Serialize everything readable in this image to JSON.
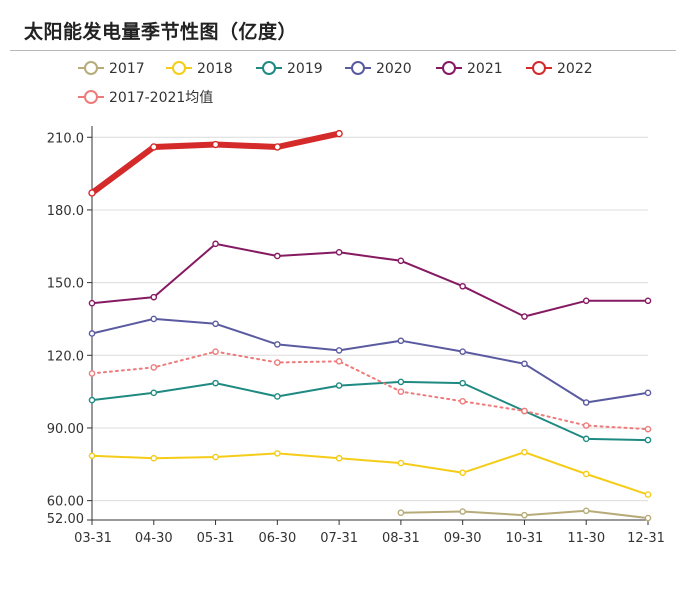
{
  "header": {
    "title": "太阳能发电量季节性图（亿度）"
  },
  "chart_data": {
    "type": "line",
    "title": "太阳能发电量季节性图（亿度）",
    "xlabel": "",
    "ylabel": "",
    "categories": [
      "03-31",
      "04-30",
      "05-31",
      "06-30",
      "07-31",
      "08-31",
      "09-30",
      "10-31",
      "11-30",
      "12-31"
    ],
    "ylim": [
      52,
      213
    ],
    "yticks": [
      {
        "value": 52,
        "label": "52.00"
      },
      {
        "value": 60,
        "label": "60.00"
      },
      {
        "value": 90,
        "label": "90.00"
      },
      {
        "value": 120,
        "label": "120.0"
      },
      {
        "value": 150,
        "label": "150.0"
      },
      {
        "value": 180,
        "label": "180.0"
      },
      {
        "value": 210,
        "label": "210.0"
      }
    ],
    "grid": true,
    "legend_position": "top",
    "series": [
      {
        "name": "2017",
        "color": "#b7ac79",
        "dashed": false,
        "bold": false,
        "values": [
          null,
          null,
          null,
          null,
          null,
          55.0,
          55.5,
          54.0,
          55.8,
          52.8
        ]
      },
      {
        "name": "2018",
        "color": "#f5cc18",
        "dashed": false,
        "bold": false,
        "values": [
          78.5,
          77.5,
          78.0,
          79.5,
          77.5,
          75.5,
          71.5,
          80.0,
          71.0,
          62.5
        ]
      },
      {
        "name": "2019",
        "color": "#1f8a82",
        "dashed": false,
        "bold": false,
        "values": [
          101.5,
          104.5,
          108.5,
          103.0,
          107.5,
          109.0,
          108.5,
          97.0,
          85.5,
          85.0
        ]
      },
      {
        "name": "2020",
        "color": "#5a5aa0",
        "dashed": false,
        "bold": false,
        "values": [
          129.0,
          135.0,
          133.0,
          124.5,
          122.0,
          126.0,
          121.5,
          116.5,
          100.5,
          104.5
        ]
      },
      {
        "name": "2021",
        "color": "#861a62",
        "dashed": false,
        "bold": false,
        "values": [
          141.5,
          144.0,
          166.0,
          161.0,
          162.5,
          159.0,
          148.5,
          136.0,
          142.5,
          142.5
        ]
      },
      {
        "name": "2022",
        "color": "#d42a2a",
        "dashed": false,
        "bold": true,
        "values": [
          187.0,
          206.0,
          207.0,
          206.0,
          211.5,
          null,
          null,
          null,
          null,
          null
        ]
      },
      {
        "name": "2017-2021均值",
        "color": "#ee7b7b",
        "dashed": true,
        "bold": false,
        "values": [
          112.5,
          115.0,
          121.5,
          117.0,
          117.5,
          105.0,
          101.0,
          97.0,
          91.0,
          89.5
        ]
      }
    ]
  }
}
